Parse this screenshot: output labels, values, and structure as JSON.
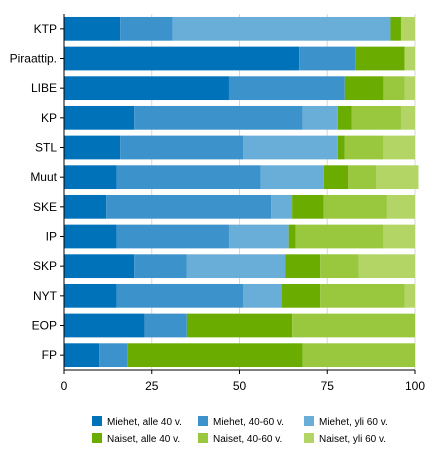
{
  "chart_data": {
    "type": "bar",
    "orientation": "horizontal",
    "stacked": true,
    "categories": [
      "KTP",
      "Piraattip.",
      "LIBE",
      "KP",
      "STL",
      "Muut",
      "SKE",
      "IP",
      "SKP",
      "NYT",
      "EOP",
      "FP"
    ],
    "series": [
      {
        "name": "Miehet, alle 40 v.",
        "color": "#0072b9",
        "values": [
          16,
          67,
          47,
          20,
          16,
          15,
          12,
          15,
          20,
          15,
          23,
          10
        ]
      },
      {
        "name": "Miehet, 40-60 v.",
        "color": "#3c92ca",
        "values": [
          15,
          16,
          33,
          48,
          35,
          41,
          47,
          32,
          15,
          36,
          12,
          8
        ]
      },
      {
        "name": "Miehet, yli 60 v.",
        "color": "#69add9",
        "values": [
          62,
          0,
          0,
          10,
          27,
          18,
          6,
          17,
          28,
          11,
          0,
          0
        ]
      },
      {
        "name": "Naiset, alle 40 v.",
        "color": "#6aac00",
        "values": [
          3,
          14,
          11,
          4,
          2,
          7,
          9,
          2,
          10,
          11,
          30,
          50
        ]
      },
      {
        "name": "Naiset, 40-60 v.",
        "color": "#99c83f",
        "values": [
          0,
          0,
          6,
          14,
          11,
          8,
          18,
          25,
          11,
          24,
          35,
          32
        ]
      },
      {
        "name": "Naiset, yli 60 v.",
        "color": "#b2d566",
        "values": [
          4,
          3,
          3,
          4,
          9,
          12,
          8,
          9,
          16,
          3,
          0,
          0
        ]
      }
    ],
    "xlim": [
      0,
      100
    ],
    "xticks": [
      "0",
      "25",
      "50",
      "75",
      "100"
    ],
    "grid": "vertical",
    "legend_position": "bottom"
  }
}
